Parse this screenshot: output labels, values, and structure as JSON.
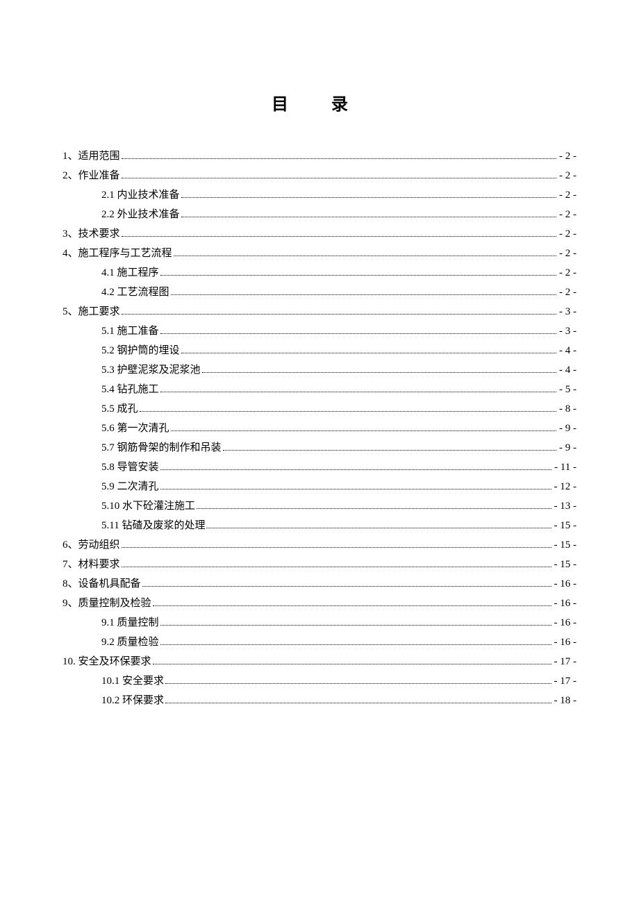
{
  "title": "目 录",
  "entries": [
    {
      "level": 1,
      "label": "1、适用范围",
      "page": "- 2 -"
    },
    {
      "level": 1,
      "label": "2、作业准备",
      "page": "- 2 -"
    },
    {
      "level": 2,
      "label": "2.1 内业技术准备",
      "page": "- 2 -"
    },
    {
      "level": 2,
      "label": "2.2 外业技术准备",
      "page": "- 2 -"
    },
    {
      "level": 1,
      "label": "3、技术要求",
      "page": "- 2 -"
    },
    {
      "level": 1,
      "label": "4、施工程序与工艺流程",
      "page": "- 2 -"
    },
    {
      "level": 2,
      "label": "4.1 施工程序",
      "page": "- 2 -"
    },
    {
      "level": 2,
      "label": "4.2 工艺流程图",
      "page": "- 2 -"
    },
    {
      "level": 1,
      "label": "5、施工要求",
      "page": "- 3 -"
    },
    {
      "level": 2,
      "label": "5.1 施工准备",
      "page": "- 3 -"
    },
    {
      "level": 2,
      "label": "5.2 钢护筒的埋设",
      "page": "- 4 -"
    },
    {
      "level": 2,
      "label": "5.3 护壁泥浆及泥浆池",
      "page": "- 4 -"
    },
    {
      "level": 2,
      "label": "5.4 钻孔施工",
      "page": "- 5 -"
    },
    {
      "level": 2,
      "label": "5.5 成孔",
      "page": "- 8 -"
    },
    {
      "level": 2,
      "label": "5.6 第一次清孔",
      "page": "- 9 -"
    },
    {
      "level": 2,
      "label": "5.7 钢筋骨架的制作和吊装",
      "page": "- 9 -"
    },
    {
      "level": 2,
      "label": "5.8 导管安装",
      "page": "- 11 -"
    },
    {
      "level": 2,
      "label": "5.9 二次清孔",
      "page": "- 12 -"
    },
    {
      "level": 2,
      "label": "5.10 水下砼灌注施工",
      "page": "- 13 -"
    },
    {
      "level": 2,
      "label": "5.11 钻碴及废浆的处理",
      "page": "- 15 -"
    },
    {
      "level": 1,
      "label": "6、劳动组织",
      "page": "- 15 -"
    },
    {
      "level": 1,
      "label": "7、材料要求",
      "page": "- 15 -"
    },
    {
      "level": 1,
      "label": "8、设备机具配备",
      "page": "- 16 -"
    },
    {
      "level": 1,
      "label": "9、质量控制及检验",
      "page": "- 16 -"
    },
    {
      "level": 2,
      "label": "9.1 质量控制",
      "page": "- 16 -"
    },
    {
      "level": 2,
      "label": "9.2 质量检验",
      "page": "- 16 -"
    },
    {
      "level": 1,
      "label": "10. 安全及环保要求",
      "page": "- 17 -"
    },
    {
      "level": 2,
      "label": "10.1 安全要求",
      "page": "- 17 -"
    },
    {
      "level": 2,
      "label": "10.2 环保要求",
      "page": "- 18 -"
    }
  ]
}
